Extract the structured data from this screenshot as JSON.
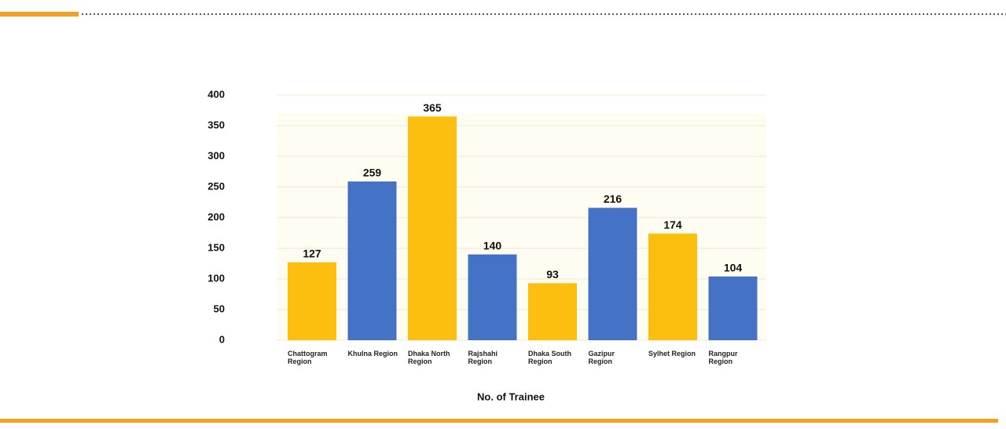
{
  "chart_data": {
    "type": "bar",
    "x_label": "No. of Trainee",
    "categories": [
      "Chattogram Region",
      "Khulna Region",
      "Dhaka North Region",
      "Rajshahi Region",
      "Dhaka South Region",
      "Gazipur Region",
      "Sylhet Region",
      "Rangpur Region"
    ],
    "values": [
      127,
      259,
      365,
      140,
      93,
      216,
      174,
      104
    ],
    "colors": [
      "#fdbf0f",
      "#4472c4",
      "#fdbf0f",
      "#4472c4",
      "#fdbf0f",
      "#4472c4",
      "#fdbf0f",
      "#4472c4"
    ],
    "ylim": [
      0,
      400
    ],
    "yticks": [
      0,
      50,
      100,
      150,
      200,
      250,
      300,
      350,
      400
    ],
    "grid": true
  }
}
